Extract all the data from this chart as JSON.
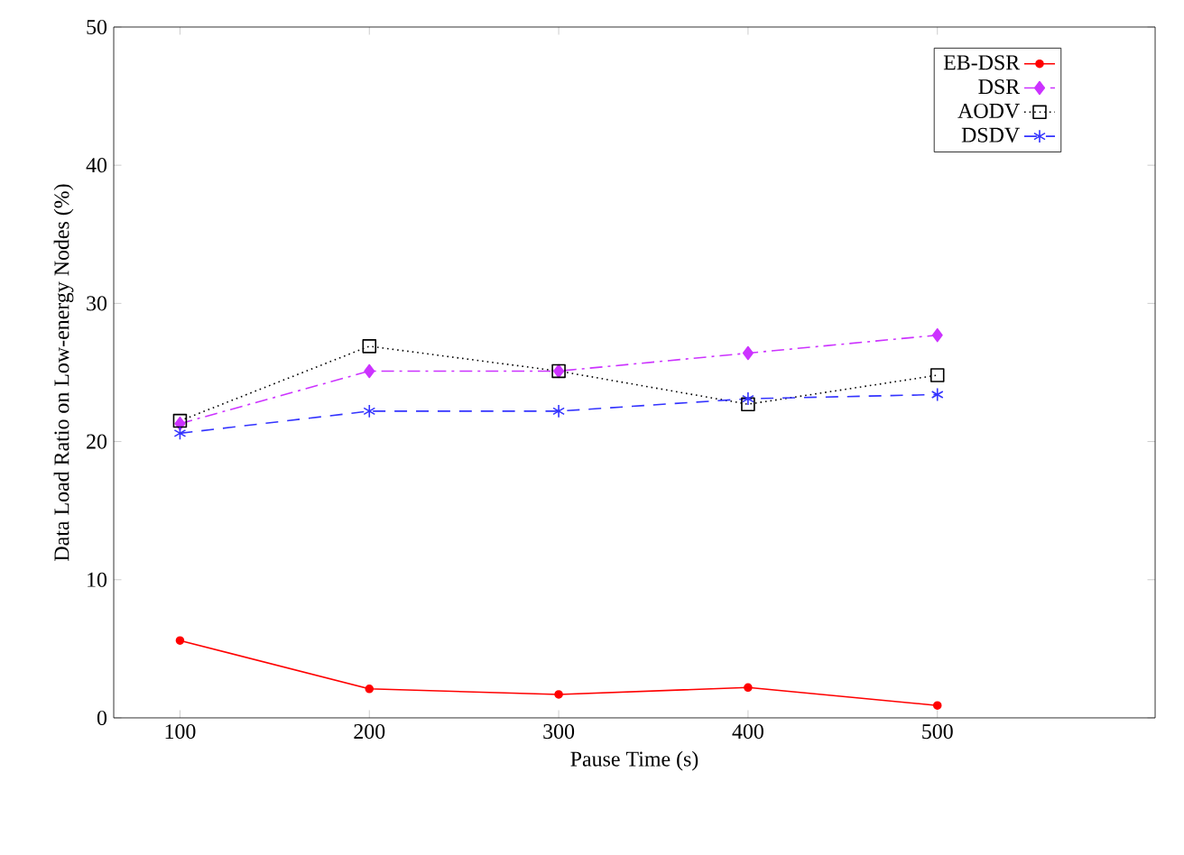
{
  "chart_data": {
    "type": "line",
    "xlabel": "Pause Time (s)",
    "ylabel": "Data Load Ratio on Low-energy Nodes (%)",
    "x": [
      100,
      200,
      300,
      400,
      500
    ],
    "series": [
      {
        "name": "EB-DSR",
        "color": "#ff0000",
        "marker": "circle",
        "line_style": "solid",
        "values": [
          5.6,
          2.1,
          1.7,
          2.2,
          0.9
        ]
      },
      {
        "name": "DSR",
        "color": "#cc33ff",
        "marker": "diamond",
        "line_style": "dashdot",
        "values": [
          21.3,
          25.1,
          25.1,
          26.4,
          27.7
        ]
      },
      {
        "name": "AODV",
        "color": "#000000",
        "marker": "square",
        "line_style": "dotted",
        "values": [
          21.5,
          26.9,
          25.1,
          22.7,
          24.8
        ]
      },
      {
        "name": "DSDV",
        "color": "#3333ff",
        "marker": "cross",
        "line_style": "dashed",
        "values": [
          20.6,
          22.2,
          22.2,
          23.1,
          23.4
        ]
      }
    ],
    "xlim": [
      65,
      615
    ],
    "ylim": [
      0,
      50
    ],
    "xticks": [
      100,
      200,
      300,
      400,
      500
    ],
    "yticks": [
      0,
      10,
      20,
      30,
      40,
      50
    ],
    "grid": false,
    "legend": "top right"
  }
}
